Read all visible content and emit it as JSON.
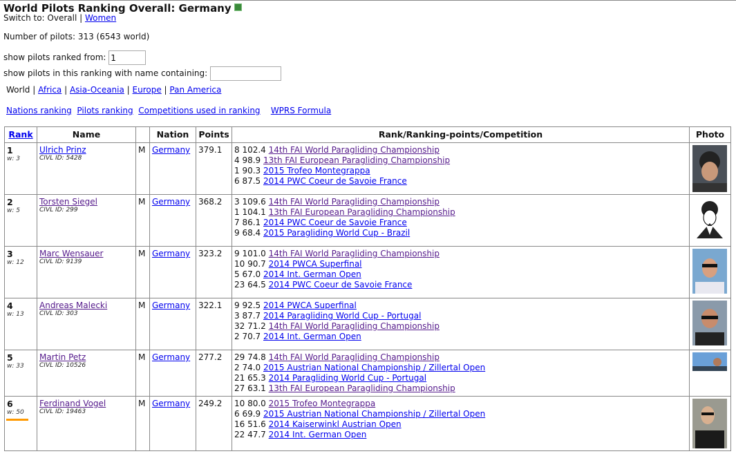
{
  "header": {
    "title": "World Pilots Ranking Overall: Germany",
    "export_icon": "excel-icon",
    "switch_label": "Switch to: Overall |",
    "switch_link": "Women",
    "pilot_count": "Number of pilots: 313 (6543 world)",
    "ranked_from_label": "show pilots ranked from:",
    "ranked_from_value": "1",
    "name_filter_label": "show pilots in this ranking with name containing:",
    "name_filter_value": ""
  },
  "regions": {
    "current": "World",
    "sep": "|",
    "links": [
      "Africa",
      "Asia-Oceania",
      "Europe",
      "Pan America"
    ]
  },
  "nav_links": [
    "Nations ranking",
    "Pilots ranking",
    "Competitions used in ranking",
    "WPRS Formula"
  ],
  "table": {
    "columns": [
      "Rank",
      "Name",
      "",
      "Nation",
      "Points",
      "Rank/Ranking-points/Competition",
      "Photo"
    ],
    "rows": [
      {
        "rank": "1",
        "w": "w: 3",
        "name": "Ulrich Prinz",
        "visited": false,
        "civl": "CIVL ID: 5428",
        "sex": "M",
        "nation": "Germany",
        "points": "379.1",
        "results": [
          [
            "8 102.4",
            "14th FAI World Paragliding Championship",
            true
          ],
          [
            "4 98.9",
            "13th FAI European Paragliding Championship",
            true
          ],
          [
            "1 90.3",
            "2015 Trofeo Montegrappa",
            false
          ],
          [
            "6 87.5",
            "2014 PWC Coeur de Savoie France",
            false
          ]
        ]
      },
      {
        "rank": "2",
        "w": "w: 5",
        "name": "Torsten Siegel",
        "visited": true,
        "civl": "CIVL ID: 299",
        "sex": "M",
        "nation": "Germany",
        "points": "368.2",
        "results": [
          [
            "3 109.6",
            "14th FAI World Paragliding Championship",
            true
          ],
          [
            "1 104.1",
            "13th FAI European Paragliding Championship",
            true
          ],
          [
            "7 86.1",
            "2014 PWC Coeur de Savoie France",
            false
          ],
          [
            "9 68.4",
            "2015 Paragliding World Cup - Brazil",
            false
          ]
        ]
      },
      {
        "rank": "3",
        "w": "w: 12",
        "name": "Marc Wensauer",
        "visited": true,
        "civl": "CIVL ID: 9139",
        "sex": "M",
        "nation": "Germany",
        "points": "323.2",
        "results": [
          [
            "9 101.0",
            "14th FAI World Paragliding Championship",
            true
          ],
          [
            "10 90.7",
            "2014 PWCA Superfinal",
            false
          ],
          [
            "5 67.0",
            "2014 Int. German Open",
            false
          ],
          [
            "23 64.5",
            "2014 PWC Coeur de Savoie France",
            false
          ]
        ]
      },
      {
        "rank": "4",
        "w": "w: 13",
        "name": "Andreas Malecki",
        "visited": true,
        "civl": "CIVL ID: 303",
        "sex": "M",
        "nation": "Germany",
        "points": "322.1",
        "results": [
          [
            "9 92.5",
            "2014 PWCA Superfinal",
            false
          ],
          [
            "3 87.7",
            "2014 Paragliding World Cup - Portugal",
            false
          ],
          [
            "32 71.2",
            "14th FAI World Paragliding Championship",
            true
          ],
          [
            "2 70.7",
            "2014 Int. German Open",
            false
          ]
        ]
      },
      {
        "rank": "5",
        "w": "w: 33",
        "name": "Martin Petz",
        "visited": true,
        "civl": "CIVL ID: 10526",
        "sex": "M",
        "nation": "Germany",
        "points": "277.2",
        "results": [
          [
            "29 74.8",
            "14th FAI World Paragliding Championship",
            true
          ],
          [
            "2 74.0",
            "2015 Austrian National Championship / Zillertal Open",
            false
          ],
          [
            "21 65.3",
            "2014 Paragliding World Cup - Portugal",
            false
          ],
          [
            "27 63.1",
            "13th FAI European Paragliding Championship",
            true
          ]
        ]
      },
      {
        "rank": "6",
        "w": "w: 50",
        "name": "Ferdinand Vogel",
        "visited": true,
        "civl": "CIVL ID: 19463",
        "sex": "M",
        "nation": "Germany",
        "points": "249.2",
        "results": [
          [
            "10 80.0",
            "2015 Trofeo Montegrappa",
            true
          ],
          [
            "6 69.9",
            "2015 Austrian National Championship / Zillertal Open",
            false
          ],
          [
            "16 51.6",
            "2014 Kaiserwinkl Austrian Open",
            false
          ],
          [
            "22 47.7",
            "2014 Int. German Open",
            false
          ]
        ]
      }
    ]
  },
  "colors": {
    "link": "#0000ee",
    "visited": "#551a8b",
    "highlight": "#ff9900"
  }
}
